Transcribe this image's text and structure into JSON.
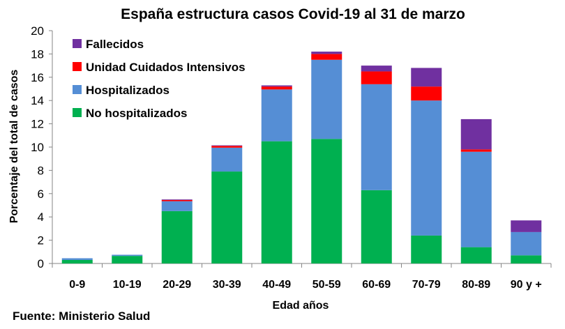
{
  "chart_data": {
    "type": "bar",
    "stacked": true,
    "title": "España estructura casos Covid-19 al 31 de marzo",
    "xlabel": "Edad años",
    "ylabel": "Porcentaje del total de casos",
    "ylim": [
      0,
      20
    ],
    "ytick_step": 2,
    "grid": false,
    "legend_position": "top-left",
    "categories": [
      "0-9",
      "10-19",
      "20-29",
      "30-39",
      "40-49",
      "50-59",
      "60-69",
      "70-79",
      "80-89",
      "90 y +"
    ],
    "series": [
      {
        "name": "No hospitalizados",
        "color": "#00b050",
        "values": [
          0.3,
          0.65,
          4.5,
          7.9,
          10.5,
          10.7,
          6.3,
          2.4,
          1.4,
          0.7
        ]
      },
      {
        "name": "Hospitalizados",
        "color": "#558ed5",
        "values": [
          0.15,
          0.1,
          0.85,
          2.05,
          4.45,
          6.8,
          9.1,
          11.6,
          8.2,
          2.0
        ]
      },
      {
        "name": "Unidad Cuidados Intensivos",
        "color": "#ff0000",
        "values": [
          0.0,
          0.0,
          0.1,
          0.15,
          0.25,
          0.5,
          1.1,
          1.2,
          0.2,
          0.0
        ]
      },
      {
        "name": "Fallecidos",
        "color": "#7030a0",
        "values": [
          0.0,
          0.0,
          0.05,
          0.05,
          0.1,
          0.2,
          0.5,
          1.6,
          2.6,
          1.0
        ]
      }
    ],
    "legend_order": [
      3,
      2,
      1,
      0
    ]
  },
  "source": "Fuente: Ministerio Salud"
}
